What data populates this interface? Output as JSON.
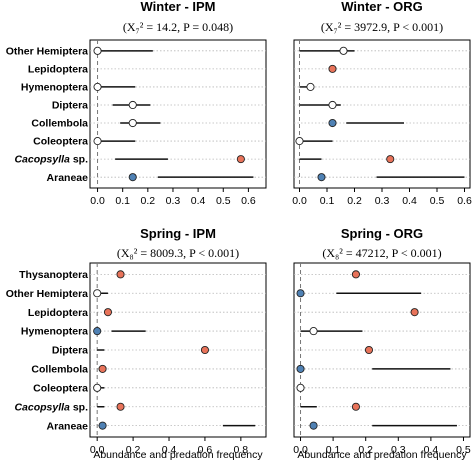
{
  "colors": {
    "open": "#ffffff",
    "orange": "#e8735a",
    "blue": "#4f81b4",
    "segment": "#111111",
    "grid": "#b8b8b8",
    "refline": "#777777"
  },
  "chart_data": [
    {
      "type": "dot-and-range",
      "title": "Winter - IPM",
      "stat_text": "(X₇² = 14.2, P = 0.048)",
      "xlabel": "",
      "xlim": [
        -0.03,
        0.67
      ],
      "xticks": [
        "0.0",
        "0.1",
        "0.2",
        "0.3",
        "0.4",
        "0.5",
        "0.6"
      ],
      "grid": "horizontal dotted",
      "reference_line": 0,
      "categories": [
        {
          "label": "Other Hemiptera",
          "italic": false,
          "point": 0.0,
          "color": "open",
          "range": [
            0.0,
            0.22
          ]
        },
        {
          "label": "Lepidoptera",
          "italic": false,
          "point": null,
          "color": null,
          "range": null
        },
        {
          "label": "Hymenoptera",
          "italic": false,
          "point": 0.0,
          "color": "open",
          "range": [
            0.0,
            0.15
          ]
        },
        {
          "label": "Diptera",
          "italic": false,
          "point": 0.14,
          "color": "open",
          "range": [
            0.06,
            0.21
          ]
        },
        {
          "label": "Collembola",
          "italic": false,
          "point": 0.14,
          "color": "open",
          "range": [
            0.09,
            0.25
          ]
        },
        {
          "label": "Coleoptera",
          "italic": false,
          "point": 0.0,
          "color": "open",
          "range": [
            0.0,
            0.15
          ]
        },
        {
          "label": "Cacopsylla sp.",
          "italic": true,
          "point": 0.57,
          "color": "orange",
          "range": [
            0.07,
            0.28
          ]
        },
        {
          "label": "Araneae",
          "italic": false,
          "point": 0.14,
          "color": "blue",
          "range": [
            0.24,
            0.62
          ]
        }
      ]
    },
    {
      "type": "dot-and-range",
      "title": "Winter - ORG",
      "stat_text": "(X₇² = 3972.9, P < 0.001)",
      "xlabel": "",
      "xlim": [
        -0.02,
        0.62
      ],
      "xticks": [
        "0.0",
        "0.1",
        "0.2",
        "0.3",
        "0.4",
        "0.5",
        "0.6"
      ],
      "grid": "horizontal dotted",
      "reference_line": 0,
      "categories": [
        {
          "label": "Other Hemiptera",
          "italic": false,
          "point": 0.16,
          "color": "open",
          "range": [
            0.0,
            0.2
          ]
        },
        {
          "label": "Lepidoptera",
          "italic": false,
          "point": 0.12,
          "color": "orange",
          "range": null
        },
        {
          "label": "Hymenoptera",
          "italic": false,
          "point": 0.04,
          "color": "open",
          "range": [
            0.0,
            0.04
          ]
        },
        {
          "label": "Diptera",
          "italic": false,
          "point": 0.12,
          "color": "open",
          "range": [
            0.0,
            0.15
          ]
        },
        {
          "label": "Collembola",
          "italic": false,
          "point": 0.12,
          "color": "blue",
          "range": [
            0.17,
            0.38
          ]
        },
        {
          "label": "Coleoptera",
          "italic": false,
          "point": 0.0,
          "color": "open",
          "range": [
            0.0,
            0.12
          ]
        },
        {
          "label": "Cacopsylla sp.",
          "italic": true,
          "point": 0.33,
          "color": "orange",
          "range": [
            0.0,
            0.08
          ]
        },
        {
          "label": "Araneae",
          "italic": false,
          "point": 0.08,
          "color": "blue",
          "range": [
            0.28,
            0.6
          ]
        }
      ]
    },
    {
      "type": "dot-and-range",
      "title": "Spring - IPM",
      "stat_text": "(X₈² = 8009.3, P < 0.001)",
      "xlabel": "Abundance and predation frequency",
      "xlim": [
        -0.04,
        0.94
      ],
      "xticks": [
        "0.0",
        "0.2",
        "0.4",
        "0.6",
        "0.8"
      ],
      "grid": "horizontal dotted",
      "reference_line": 0,
      "categories": [
        {
          "label": "Thysanoptera",
          "italic": false,
          "point": 0.13,
          "color": "orange",
          "range": null
        },
        {
          "label": "Other Hemiptera",
          "italic": false,
          "point": 0.0,
          "color": "open",
          "range": [
            0.0,
            0.06
          ]
        },
        {
          "label": "Lepidoptera",
          "italic": false,
          "point": 0.06,
          "color": "orange",
          "range": null
        },
        {
          "label": "Hymenoptera",
          "italic": false,
          "point": 0.0,
          "color": "blue",
          "range": [
            0.08,
            0.27
          ]
        },
        {
          "label": "Diptera",
          "italic": false,
          "point": 0.6,
          "color": "orange",
          "range": [
            0.0,
            0.04
          ]
        },
        {
          "label": "Collembola",
          "italic": false,
          "point": 0.03,
          "color": "orange",
          "range": null
        },
        {
          "label": "Coleoptera",
          "italic": false,
          "point": 0.0,
          "color": "open",
          "range": [
            0.0,
            0.04
          ]
        },
        {
          "label": "Cacopsylla sp.",
          "italic": true,
          "point": 0.13,
          "color": "orange",
          "range": [
            0.0,
            0.04
          ]
        },
        {
          "label": "Araneae",
          "italic": false,
          "point": 0.03,
          "color": "blue",
          "range": [
            0.7,
            0.88
          ]
        }
      ]
    },
    {
      "type": "dot-and-range",
      "title": "Spring - ORG",
      "stat_text": "(X₈² = 47212, P < 0.001)",
      "xlabel": "Abundance and predation frequency",
      "xlim": [
        -0.02,
        0.52
      ],
      "xticks": [
        "0.0",
        "0.1",
        "0.2",
        "0.3",
        "0.4",
        "0.5"
      ],
      "grid": "horizontal dotted",
      "reference_line": 0,
      "categories": [
        {
          "label": "Thysanoptera",
          "italic": false,
          "point": 0.17,
          "color": "orange",
          "range": null
        },
        {
          "label": "Other Hemiptera",
          "italic": false,
          "point": 0.0,
          "color": "blue",
          "range": [
            0.11,
            0.37
          ]
        },
        {
          "label": "Lepidoptera",
          "italic": false,
          "point": 0.35,
          "color": "orange",
          "range": null
        },
        {
          "label": "Hymenoptera",
          "italic": false,
          "point": 0.04,
          "color": "open",
          "range": [
            0.0,
            0.19
          ]
        },
        {
          "label": "Diptera",
          "italic": false,
          "point": 0.21,
          "color": "orange",
          "range": null
        },
        {
          "label": "Collembola",
          "italic": false,
          "point": 0.0,
          "color": "blue",
          "range": [
            0.22,
            0.46
          ]
        },
        {
          "label": "Coleoptera",
          "italic": false,
          "point": 0.0,
          "color": "open",
          "range": null
        },
        {
          "label": "Cacopsylla sp.",
          "italic": true,
          "point": 0.17,
          "color": "orange",
          "range": [
            0.0,
            0.05
          ]
        },
        {
          "label": "Araneae",
          "italic": false,
          "point": 0.04,
          "color": "blue",
          "range": [
            0.22,
            0.48
          ]
        }
      ]
    }
  ]
}
